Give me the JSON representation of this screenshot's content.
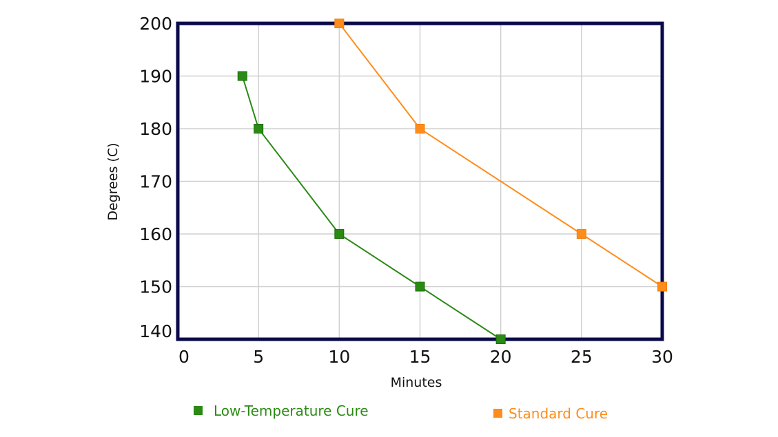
{
  "chart_data": {
    "type": "line",
    "xlabel": "Minutes",
    "ylabel": "Degrees (C)",
    "xlim": [
      0,
      30
    ],
    "ylim": [
      140,
      200
    ],
    "x_ticks": [
      "0",
      "5",
      "10",
      "15",
      "20",
      "25",
      "30"
    ],
    "y_ticks": [
      "140",
      "150",
      "160",
      "170",
      "180",
      "190",
      "200"
    ],
    "grid": true,
    "legend_position": "bottom",
    "series": [
      {
        "name": "Low-Temperature Cure",
        "color": "#2a8a14",
        "marker": "square",
        "points": [
          [
            4,
            190
          ],
          [
            5,
            180
          ],
          [
            10,
            160
          ],
          [
            15,
            150
          ],
          [
            20,
            140
          ]
        ]
      },
      {
        "name": "Standard Cure",
        "color": "#ff8c1a",
        "marker": "square",
        "points": [
          [
            10,
            200
          ],
          [
            15,
            180
          ],
          [
            25,
            160
          ],
          [
            30,
            150
          ]
        ]
      }
    ]
  }
}
